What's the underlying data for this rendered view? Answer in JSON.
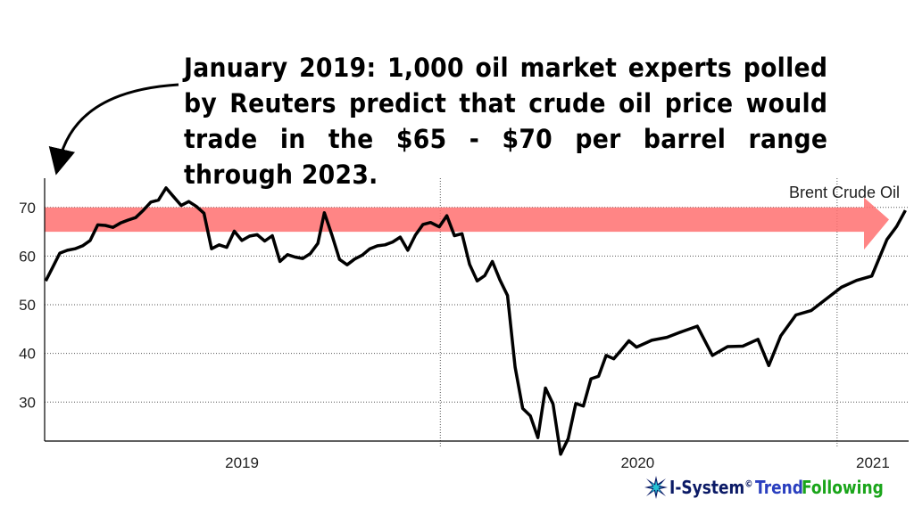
{
  "headline": "January 2019: 1,000 oil market experts polled by Reuters predict that crude oil price would trade in the $65 - $70 per barrel range through 2023.",
  "logo": {
    "brand": "I-System",
    "registered": "©",
    "part1": "Trend",
    "part2": "Following",
    "icon": "starburst-icon",
    "colors": {
      "brand": "#0b1a66",
      "trend": "#2a3fbf",
      "following": "#1aa51a"
    }
  },
  "chart_data": {
    "type": "line",
    "series": [
      {
        "name": "Brent Crude Oil",
        "color": "#000000",
        "x": [
          "2019-01-02",
          "2019-01-08",
          "2019-01-15",
          "2019-01-22",
          "2019-01-29",
          "2019-02-05",
          "2019-02-12",
          "2019-02-19",
          "2019-02-26",
          "2019-03-05",
          "2019-03-12",
          "2019-03-19",
          "2019-03-26",
          "2019-04-02",
          "2019-04-09",
          "2019-04-16",
          "2019-04-23",
          "2019-04-30",
          "2019-05-07",
          "2019-05-14",
          "2019-05-21",
          "2019-05-28",
          "2019-06-04",
          "2019-06-11",
          "2019-06-18",
          "2019-06-25",
          "2019-07-02",
          "2019-07-09",
          "2019-07-16",
          "2019-07-23",
          "2019-07-30",
          "2019-08-06",
          "2019-08-13",
          "2019-08-20",
          "2019-08-27",
          "2019-09-03",
          "2019-09-10",
          "2019-09-16",
          "2019-09-23",
          "2019-09-30",
          "2019-10-07",
          "2019-10-14",
          "2019-10-21",
          "2019-10-28",
          "2019-11-04",
          "2019-11-11",
          "2019-11-18",
          "2019-11-25",
          "2019-12-02",
          "2019-12-09",
          "2019-12-16",
          "2019-12-23",
          "2019-12-31",
          "2020-01-07",
          "2020-01-14",
          "2020-01-21",
          "2020-01-28",
          "2020-02-04",
          "2020-02-11",
          "2020-02-18",
          "2020-02-25",
          "2020-03-03",
          "2020-03-10",
          "2020-03-17",
          "2020-03-24",
          "2020-03-31",
          "2020-04-07",
          "2020-04-14",
          "2020-04-21",
          "2020-04-28",
          "2020-05-05",
          "2020-05-12",
          "2020-05-19",
          "2020-05-26",
          "2020-06-02",
          "2020-06-09",
          "2020-06-16",
          "2020-06-23",
          "2020-06-30",
          "2020-07-14",
          "2020-07-28",
          "2020-08-11",
          "2020-08-25",
          "2020-09-08",
          "2020-09-22",
          "2020-10-06",
          "2020-10-20",
          "2020-10-30",
          "2020-11-10",
          "2020-11-24",
          "2020-12-08",
          "2020-12-22",
          "2021-01-05",
          "2021-01-19",
          "2021-02-02",
          "2021-02-16",
          "2021-02-25",
          "2021-03-05"
        ],
        "values": [
          54.9,
          57.5,
          60.6,
          61.2,
          61.5,
          62.1,
          63.2,
          66.4,
          66.3,
          65.9,
          66.8,
          67.4,
          67.9,
          69.4,
          71.1,
          71.5,
          74.0,
          72.2,
          70.4,
          71.2,
          70.2,
          68.8,
          61.5,
          62.3,
          61.8,
          65.1,
          63.2,
          64.1,
          64.4,
          63.1,
          64.2,
          58.9,
          60.3,
          59.8,
          59.5,
          60.5,
          62.6,
          68.9,
          64.3,
          59.3,
          58.2,
          59.4,
          60.2,
          61.5,
          62.1,
          62.3,
          62.9,
          63.9,
          61.2,
          64.3,
          66.5,
          66.9,
          66.0,
          68.3,
          64.2,
          64.6,
          58.3,
          54.9,
          56.0,
          58.9,
          55.1,
          51.9,
          37.2,
          28.7,
          27.2,
          22.7,
          32.9,
          29.6,
          19.3,
          22.5,
          29.7,
          29.2,
          34.8,
          35.3,
          39.6,
          38.9,
          40.7,
          42.6,
          41.3,
          42.7,
          43.3,
          44.5,
          45.6,
          39.6,
          41.4,
          41.5,
          42.9,
          37.5,
          43.6,
          47.9,
          48.8,
          51.2,
          53.6,
          55.0,
          55.9,
          63.4,
          66.1,
          69.4
        ]
      }
    ],
    "series_label": "Brent Crude Oil",
    "xticks": [
      "2019",
      "2020",
      "2021"
    ],
    "yticks": [
      30,
      40,
      50,
      60,
      70
    ],
    "ylim": [
      22,
      76
    ],
    "xlim": [
      "2019-01-01",
      "2021-03-08"
    ],
    "grid": true,
    "highlight_band": {
      "from": 65,
      "to": 70,
      "color": "#ff7070",
      "arrow": "right"
    },
    "annotation_arrow": "curved arrow from headline to start of series",
    "year_dividers": [
      "2020-01-01",
      "2021-01-01"
    ]
  }
}
